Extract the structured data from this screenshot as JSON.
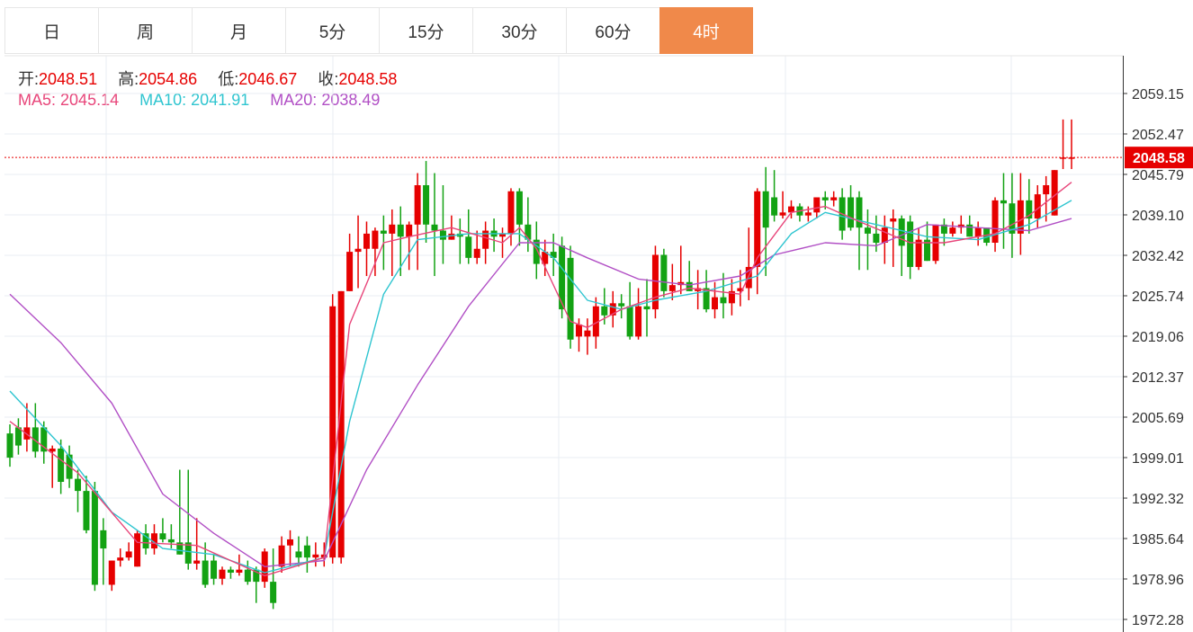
{
  "tabs": [
    {
      "label": "日",
      "active": false
    },
    {
      "label": "周",
      "active": false
    },
    {
      "label": "月",
      "active": false
    },
    {
      "label": "5分",
      "active": false
    },
    {
      "label": "15分",
      "active": false
    },
    {
      "label": "30分",
      "active": false
    },
    {
      "label": "60分",
      "active": false
    },
    {
      "label": "4时",
      "active": true
    }
  ],
  "ohlc": {
    "open_label": "开:",
    "open": "2048.51",
    "high_label": "高:",
    "high": "2054.86",
    "low_label": "低:",
    "low": "2046.67",
    "close_label": "收:",
    "close": "2048.58"
  },
  "ma": {
    "ma5_label": "MA5:",
    "ma5": "2045.14",
    "ma10_label": "MA10:",
    "ma10": "2041.91",
    "ma20_label": "MA20:",
    "ma20": "2038.49"
  },
  "colors": {
    "up": "#e60000",
    "down": "#13a213",
    "ma5": "#e8457a",
    "ma10": "#2fc5d0",
    "ma20": "#b14fc5",
    "active_tab": "#f0894a",
    "last_price_line": "#e60000"
  },
  "chart_data": {
    "type": "candlestick",
    "y_ticks": [
      "2059.15",
      "2052.47",
      "2045.79",
      "2039.10",
      "2032.42",
      "2025.74",
      "2019.06",
      "2012.37",
      "2005.69",
      "1999.01",
      "1992.32",
      "1985.64",
      "1978.96",
      "1972.28"
    ],
    "ylim": [
      1971.5,
      2064.0
    ],
    "last_price": "2048.58",
    "candles": [
      [
        2003.0,
        2004.5,
        1997.5,
        1999.0
      ],
      [
        2004.0,
        2005.5,
        1999.5,
        2001.0
      ],
      [
        2002.0,
        2008.0,
        2000.0,
        2004.0
      ],
      [
        2004.0,
        2008.0,
        1999.0,
        2000.0
      ],
      [
        2004.0,
        2005.0,
        1998.0,
        2000.0
      ],
      [
        2000.0,
        2001.0,
        1994.0,
        2000.5
      ],
      [
        2000.5,
        2002.0,
        1993.0,
        1995.0
      ],
      [
        1999.5,
        2001.0,
        1994.0,
        1995.5
      ],
      [
        1995.5,
        1997.0,
        1990.0,
        1993.5
      ],
      [
        1993.5,
        1996.0,
        1986.5,
        1987.0
      ],
      [
        1993.5,
        1995.0,
        1977.0,
        1978.0
      ],
      [
        1987.0,
        1989.0,
        1978.0,
        1984.0
      ],
      [
        1978.0,
        1982.0,
        1977.0,
        1982.0
      ],
      [
        1982.0,
        1984.0,
        1981.0,
        1982.5
      ],
      [
        1982.5,
        1985.0,
        1982.0,
        1983.5
      ],
      [
        1981.0,
        1987.0,
        1981.0,
        1986.5
      ],
      [
        1986.5,
        1988.0,
        1983.0,
        1984.0
      ],
      [
        1984.0,
        1988.0,
        1983.0,
        1986.5
      ],
      [
        1986.5,
        1989.0,
        1985.0,
        1985.5
      ],
      [
        1985.5,
        1988.0,
        1984.0,
        1985.0
      ],
      [
        1985.0,
        1997.0,
        1983.0,
        1983.0
      ],
      [
        1985.0,
        1997.0,
        1980.5,
        1981.5
      ],
      [
        1981.5,
        1989.0,
        1980.5,
        1982.0
      ],
      [
        1982.0,
        1985.0,
        1977.5,
        1978.0
      ],
      [
        1982.0,
        1983.0,
        1978.0,
        1979.0
      ],
      [
        1979.0,
        1981.0,
        1978.0,
        1980.5
      ],
      [
        1980.5,
        1981.0,
        1979.0,
        1980.0
      ],
      [
        1980.0,
        1983.0,
        1979.5,
        1980.5
      ],
      [
        1980.5,
        1982.0,
        1978.0,
        1978.5
      ],
      [
        1980.5,
        1981.0,
        1975.0,
        1978.5
      ],
      [
        1978.5,
        1984.0,
        1977.5,
        1983.5
      ],
      [
        1978.5,
        1984.0,
        1974.0,
        1975.0
      ],
      [
        1981.0,
        1986.0,
        1980.0,
        1984.5
      ],
      [
        1984.5,
        1987.0,
        1981.0,
        1985.5
      ],
      [
        1983.5,
        1986.0,
        1981.0,
        1982.5
      ],
      [
        1984.5,
        1986.0,
        1980.0,
        1982.5
      ],
      [
        1982.5,
        1985.0,
        1981.0,
        1983.0
      ],
      [
        1982.5,
        1985.0,
        1981.0,
        1983.0
      ],
      [
        1982.5,
        2026.0,
        1981.5,
        2024.0
      ],
      [
        1982.5,
        2026.5,
        1981.5,
        2026.5
      ],
      [
        2026.5,
        2036.0,
        2026.5,
        2033.0
      ],
      [
        2033.0,
        2039.0,
        2027.0,
        2033.5
      ],
      [
        2033.5,
        2038.0,
        2029.0,
        2036.0
      ],
      [
        2033.5,
        2037.0,
        2029.0,
        2036.5
      ],
      [
        2036.5,
        2039.0,
        2030.0,
        2036.0
      ],
      [
        2036.0,
        2040.0,
        2029.0,
        2037.5
      ],
      [
        2037.5,
        2040.5,
        2029.0,
        2035.5
      ],
      [
        2035.5,
        2038.0,
        2030.0,
        2037.5
      ],
      [
        2037.5,
        2046.0,
        2030.0,
        2044.0
      ],
      [
        2044.0,
        2048.0,
        2034.5,
        2037.5
      ],
      [
        2037.5,
        2046.0,
        2029.0,
        2036.5
      ],
      [
        2036.5,
        2044.0,
        2031.0,
        2035.0
      ],
      [
        2035.0,
        2039.0,
        2035.0,
        2036.0
      ],
      [
        2036.0,
        2038.5,
        2031.0,
        2035.5
      ],
      [
        2035.5,
        2040.0,
        2031.0,
        2032.0
      ],
      [
        2032.0,
        2036.5,
        2031.0,
        2033.5
      ],
      [
        2033.5,
        2038.0,
        2031.0,
        2036.5
      ],
      [
        2036.5,
        2038.5,
        2033.0,
        2035.5
      ],
      [
        2035.5,
        2037.0,
        2032.0,
        2036.0
      ],
      [
        2036.0,
        2043.5,
        2034.0,
        2043.0
      ],
      [
        2043.0,
        2043.5,
        2034.0,
        2037.5
      ],
      [
        2037.5,
        2042.0,
        2033.0,
        2035.0
      ],
      [
        2035.0,
        2038.0,
        2028.5,
        2031.0
      ],
      [
        2031.0,
        2035.0,
        2029.0,
        2033.0
      ],
      [
        2033.0,
        2036.0,
        2029.0,
        2032.0
      ],
      [
        2034.0,
        2035.5,
        2022.0,
        2023.5
      ],
      [
        2032.0,
        2034.0,
        2017.0,
        2018.5
      ],
      [
        2019.0,
        2022.0,
        2016.5,
        2021.0
      ],
      [
        2019.0,
        2022.0,
        2016.0,
        2020.0
      ],
      [
        2019.0,
        2025.5,
        2017.0,
        2024.0
      ],
      [
        2024.0,
        2027.0,
        2021.0,
        2022.5
      ],
      [
        2022.5,
        2026.5,
        2020.5,
        2024.5
      ],
      [
        2024.5,
        2026.0,
        2022.0,
        2024.0
      ],
      [
        2024.0,
        2028.0,
        2018.5,
        2019.0
      ],
      [
        2019.0,
        2027.0,
        2018.5,
        2024.0
      ],
      [
        2024.0,
        2028.5,
        2019.0,
        2023.5
      ],
      [
        2023.5,
        2034.0,
        2022.0,
        2032.5
      ],
      [
        2032.5,
        2033.5,
        2025.5,
        2026.5
      ],
      [
        2026.5,
        2031.0,
        2025.0,
        2027.5
      ],
      [
        2027.5,
        2034.0,
        2026.0,
        2028.0
      ],
      [
        2028.0,
        2031.5,
        2026.5,
        2026.5
      ],
      [
        2026.5,
        2030.0,
        2023.5,
        2027.0
      ],
      [
        2027.0,
        2030.0,
        2023.0,
        2023.5
      ],
      [
        2023.5,
        2028.0,
        2022.0,
        2025.5
      ],
      [
        2025.5,
        2029.5,
        2022.0,
        2024.5
      ],
      [
        2024.5,
        2028.5,
        2022.5,
        2026.5
      ],
      [
        2026.5,
        2030.0,
        2024.0,
        2027.0
      ],
      [
        2027.0,
        2037.0,
        2025.0,
        2030.5
      ],
      [
        2030.5,
        2043.5,
        2026.0,
        2043.0
      ],
      [
        2043.0,
        2047.0,
        2029.0,
        2037.0
      ],
      [
        2042.0,
        2046.5,
        2038.0,
        2039.0
      ],
      [
        2039.0,
        2043.0,
        2038.5,
        2039.5
      ],
      [
        2039.5,
        2041.5,
        2038.5,
        2040.5
      ],
      [
        2040.5,
        2041.0,
        2038.0,
        2039.0
      ],
      [
        2039.0,
        2040.5,
        2038.0,
        2039.5
      ],
      [
        2039.5,
        2042.0,
        2038.5,
        2042.0
      ],
      [
        2042.0,
        2043.0,
        2040.0,
        2041.5
      ],
      [
        2041.5,
        2043.0,
        2040.5,
        2042.0
      ],
      [
        2042.0,
        2043.5,
        2035.0,
        2036.5
      ],
      [
        2042.0,
        2044.0,
        2036.5,
        2037.0
      ],
      [
        2042.0,
        2043.0,
        2030.0,
        2037.0
      ],
      [
        2037.0,
        2040.0,
        2030.0,
        2036.0
      ],
      [
        2036.0,
        2039.0,
        2033.0,
        2034.5
      ],
      [
        2034.5,
        2039.0,
        2031.0,
        2037.0
      ],
      [
        2038.0,
        2040.0,
        2030.5,
        2038.5
      ],
      [
        2038.5,
        2039.0,
        2029.0,
        2034.0
      ],
      [
        2038.0,
        2039.0,
        2028.5,
        2030.5
      ],
      [
        2030.5,
        2037.0,
        2030.0,
        2035.0
      ],
      [
        2035.0,
        2038.0,
        2031.5,
        2031.5
      ],
      [
        2031.5,
        2037.5,
        2031.0,
        2037.5
      ],
      [
        2037.5,
        2038.5,
        2034.0,
        2036.0
      ],
      [
        2036.0,
        2038.0,
        2035.5,
        2037.0
      ],
      [
        2037.0,
        2039.0,
        2036.0,
        2037.5
      ],
      [
        2037.5,
        2039.0,
        2035.5,
        2035.5
      ],
      [
        2035.5,
        2038.0,
        2034.0,
        2037.0
      ],
      [
        2037.0,
        2037.0,
        2034.0,
        2034.5
      ],
      [
        2034.5,
        2042.0,
        2033.0,
        2041.5
      ],
      [
        2041.5,
        2046.0,
        2033.5,
        2041.0
      ],
      [
        2041.0,
        2046.0,
        2032.0,
        2036.0
      ],
      [
        2036.0,
        2046.0,
        2032.5,
        2041.5
      ],
      [
        2041.5,
        2045.0,
        2036.0,
        2038.5
      ],
      [
        2038.5,
        2044.0,
        2037.0,
        2042.5
      ],
      [
        2042.5,
        2045.5,
        2038.0,
        2044.0
      ],
      [
        2039.0,
        2046.5,
        2039.0,
        2046.5
      ],
      [
        2048.51,
        2054.86,
        2046.67,
        2048.58
      ],
      [
        2048.51,
        2054.86,
        2046.67,
        2048.58
      ]
    ],
    "ma5": [
      [
        0,
        2005.0
      ],
      [
        8,
        1996.5
      ],
      [
        15,
        1985.0
      ],
      [
        22,
        1984.5
      ],
      [
        30,
        1979.5
      ],
      [
        37,
        1982.5
      ],
      [
        40,
        2021.0
      ],
      [
        44,
        2034.5
      ],
      [
        47,
        2035.5
      ],
      [
        52,
        2037.0
      ],
      [
        58,
        2034.5
      ],
      [
        60,
        2037.0
      ],
      [
        62,
        2033.5
      ],
      [
        66,
        2021.5
      ],
      [
        68,
        2020.5
      ],
      [
        72,
        2023.5
      ],
      [
        76,
        2025.5
      ],
      [
        80,
        2027.0
      ],
      [
        86,
        2026.0
      ],
      [
        88,
        2032.0
      ],
      [
        92,
        2039.5
      ],
      [
        96,
        2040.5
      ],
      [
        100,
        2038.0
      ],
      [
        106,
        2034.5
      ],
      [
        110,
        2034.5
      ],
      [
        116,
        2036.0
      ],
      [
        120,
        2039.0
      ],
      [
        125,
        2044.5
      ]
    ],
    "ma10": [
      [
        0,
        2010.0
      ],
      [
        6,
        2001.0
      ],
      [
        12,
        1990.0
      ],
      [
        18,
        1984.0
      ],
      [
        24,
        1983.0
      ],
      [
        30,
        1980.0
      ],
      [
        37,
        1982.5
      ],
      [
        40,
        2005.0
      ],
      [
        44,
        2026.0
      ],
      [
        48,
        2035.0
      ],
      [
        54,
        2036.0
      ],
      [
        60,
        2036.0
      ],
      [
        64,
        2032.0
      ],
      [
        68,
        2025.0
      ],
      [
        72,
        2023.5
      ],
      [
        76,
        2025.0
      ],
      [
        82,
        2026.5
      ],
      [
        88,
        2029.0
      ],
      [
        92,
        2036.0
      ],
      [
        96,
        2039.5
      ],
      [
        102,
        2037.5
      ],
      [
        108,
        2035.5
      ],
      [
        114,
        2035.0
      ],
      [
        120,
        2037.5
      ],
      [
        125,
        2041.5
      ]
    ],
    "ma20": [
      [
        0,
        2026.0
      ],
      [
        6,
        2018.0
      ],
      [
        12,
        2008.0
      ],
      [
        18,
        1993.0
      ],
      [
        24,
        1986.5
      ],
      [
        30,
        1981.0
      ],
      [
        37,
        1982.0
      ],
      [
        42,
        1997.0
      ],
      [
        48,
        2011.0
      ],
      [
        54,
        2024.0
      ],
      [
        60,
        2034.5
      ],
      [
        64,
        2034.5
      ],
      [
        68,
        2032.0
      ],
      [
        74,
        2028.5
      ],
      [
        80,
        2027.5
      ],
      [
        86,
        2029.0
      ],
      [
        90,
        2032.5
      ],
      [
        96,
        2034.5
      ],
      [
        102,
        2034.0
      ],
      [
        108,
        2037.5
      ],
      [
        114,
        2037.0
      ],
      [
        120,
        2036.5
      ],
      [
        125,
        2038.5
      ]
    ]
  }
}
